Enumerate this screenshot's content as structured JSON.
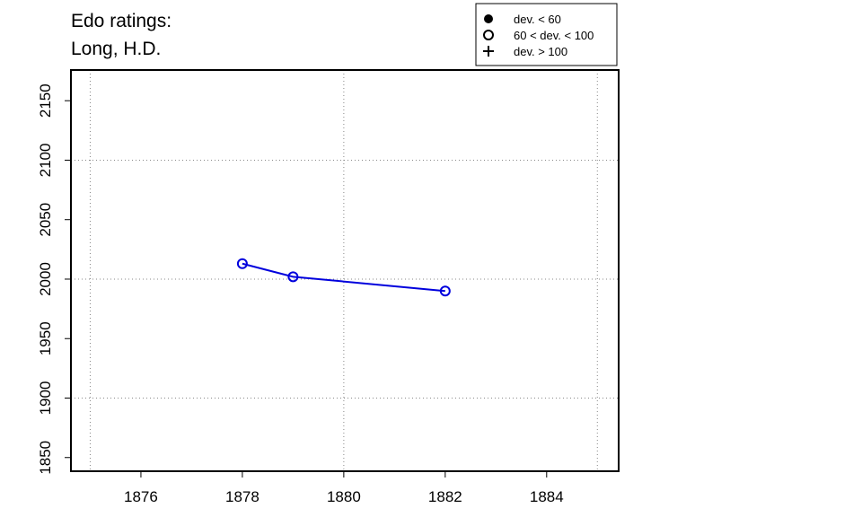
{
  "chart_data": {
    "type": "line",
    "title": [
      "Edo ratings:",
      "Long, H.D."
    ],
    "x": [
      1878,
      1879,
      1882
    ],
    "series": [
      {
        "name": "Long, H.D.",
        "color": "#0000dd",
        "values": [
          2013,
          2002,
          1990
        ],
        "marker": "open-circle"
      }
    ],
    "xlim": [
      1874.62,
      1885.42
    ],
    "xticks": [
      1876,
      1878,
      1880,
      1882,
      1884
    ],
    "ylim": [
      1838.5,
      2175.8
    ],
    "yticks": [
      1850,
      1900,
      1950,
      2000,
      2050,
      2100,
      2150
    ],
    "xgrid": [
      1875,
      1880,
      1885
    ],
    "ygrid": [
      1900,
      2000,
      2100
    ],
    "legend": [
      {
        "label": "dev. < 60",
        "symbol": "filled-circle"
      },
      {
        "label": "60 < dev. < 100",
        "symbol": "open-circle"
      },
      {
        "label": "dev. > 100",
        "symbol": "plus"
      }
    ],
    "legend_position": "top"
  }
}
